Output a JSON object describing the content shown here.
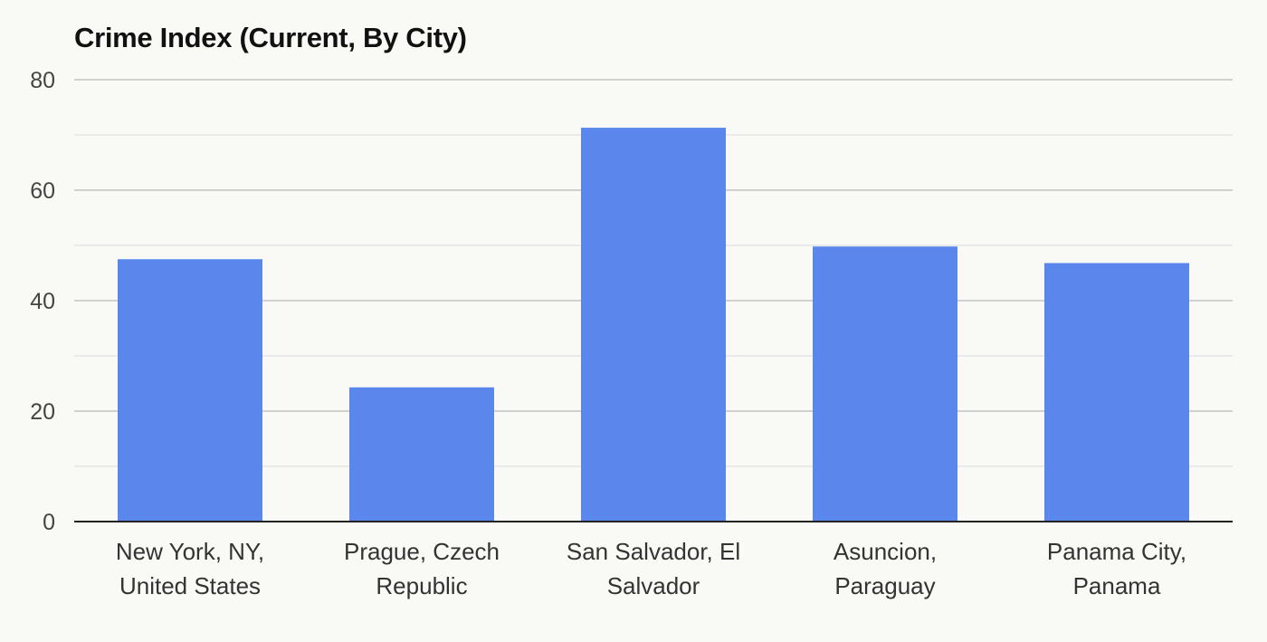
{
  "chart_data": {
    "type": "bar",
    "title": "Crime Index (Current, By City)",
    "xlabel": "",
    "ylabel": "",
    "categories": [
      [
        "New York, NY,",
        "United States"
      ],
      [
        "Prague, Czech",
        "Republic"
      ],
      [
        "San Salvador, El",
        "Salvador"
      ],
      [
        "Asuncion,",
        "Paraguay"
      ],
      [
        "Panama City,",
        "Panama"
      ]
    ],
    "values": [
      47.5,
      24.3,
      71.3,
      49.8,
      46.8
    ],
    "ylim": [
      0,
      80
    ],
    "yticks": [
      0,
      20,
      40,
      60,
      80
    ],
    "minor_gridlines": [
      10,
      30,
      50,
      70
    ],
    "grid": true,
    "legend": "none",
    "bar_color": "#5b87ec"
  }
}
